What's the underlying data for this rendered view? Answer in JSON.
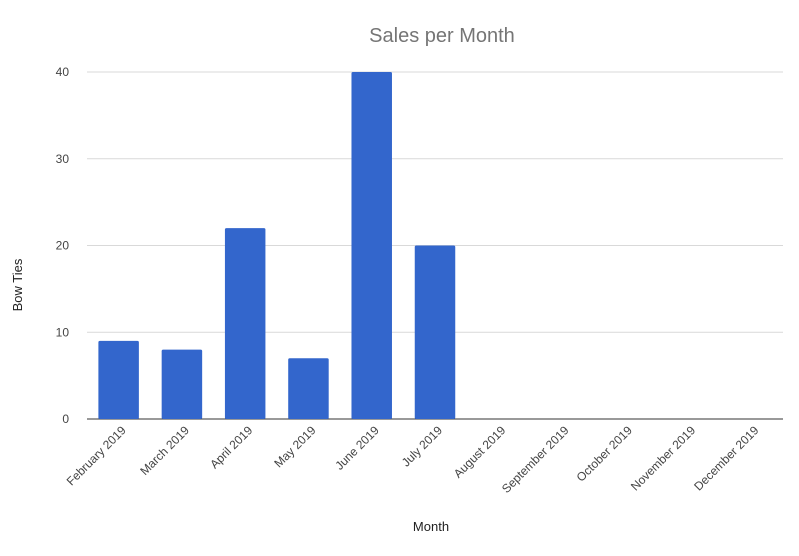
{
  "chart_data": {
    "type": "bar",
    "title": "Sales per Month",
    "xlabel": "Month",
    "ylabel": "Bow Ties",
    "categories": [
      "February 2019",
      "March 2019",
      "April 2019",
      "May 2019",
      "June 2019",
      "July 2019",
      "August 2019",
      "September 2019",
      "October 2019",
      "November 2019",
      "December 2019"
    ],
    "series": [
      {
        "values": [
          9,
          8,
          22,
          7,
          40,
          20,
          null,
          null,
          null,
          null,
          null
        ]
      }
    ],
    "yticks": [
      0,
      10,
      20,
      30,
      40
    ],
    "ylim": [
      0,
      40
    ],
    "grid": true,
    "legend": "none",
    "bar_color": "#3366cc"
  }
}
